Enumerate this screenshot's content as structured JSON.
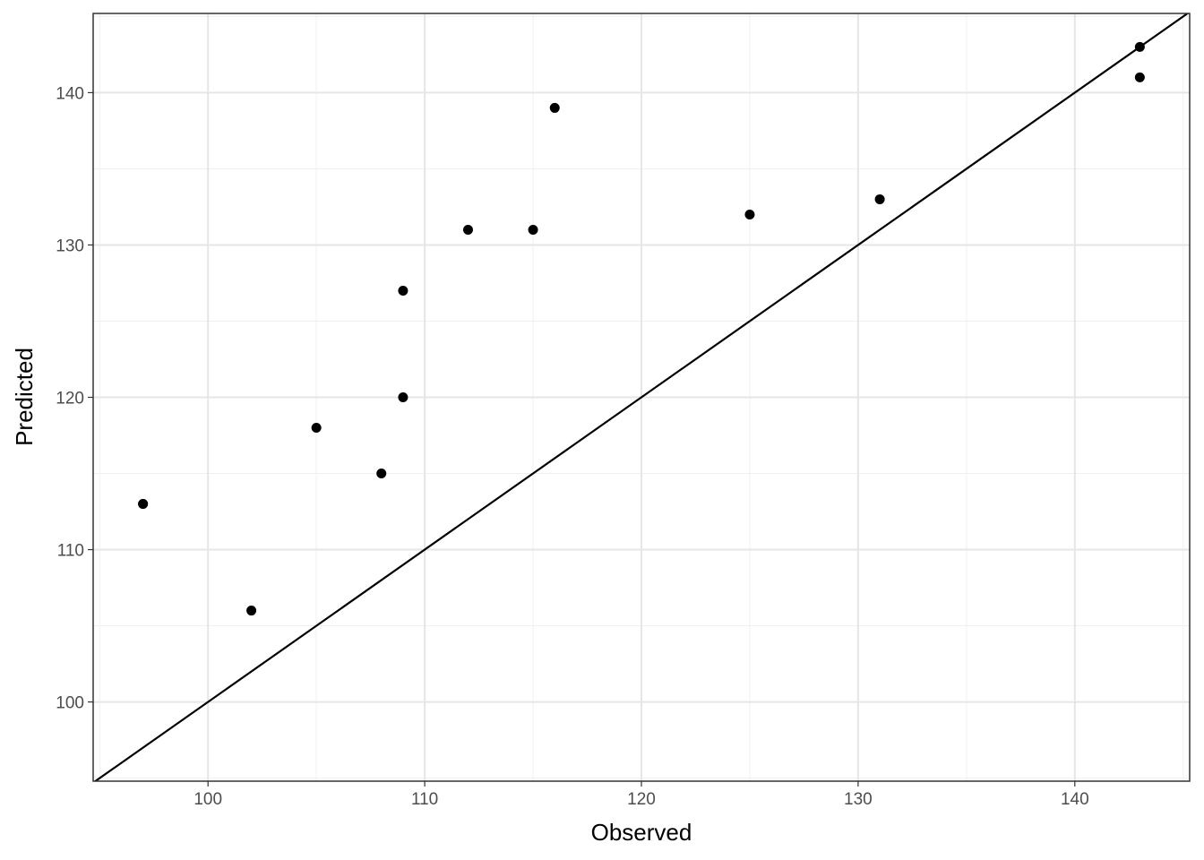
{
  "chart_data": {
    "type": "scatter",
    "x_label": "Observed",
    "y_label": "Predicted",
    "x": [
      97,
      97,
      102,
      105,
      108,
      109,
      109,
      112,
      115,
      116,
      125,
      131,
      143,
      143
    ],
    "values": [
      113,
      113,
      106,
      118,
      115,
      120,
      127,
      131,
      131,
      139,
      132,
      133,
      143,
      141
    ],
    "color": "#000000",
    "xlim": [
      94.7,
      145.3
    ],
    "ylim": [
      94.8,
      145.2
    ],
    "xticks": [
      100,
      110,
      120,
      130,
      140
    ],
    "yticks": [
      100,
      110,
      120,
      130,
      140
    ],
    "x_minor_grid": [
      95,
      105,
      115,
      125,
      135,
      145
    ],
    "y_minor_grid": [
      95,
      105,
      115,
      125,
      135,
      145
    ],
    "grid": true,
    "reference_line": {
      "slope": 1,
      "intercept": 0
    }
  }
}
